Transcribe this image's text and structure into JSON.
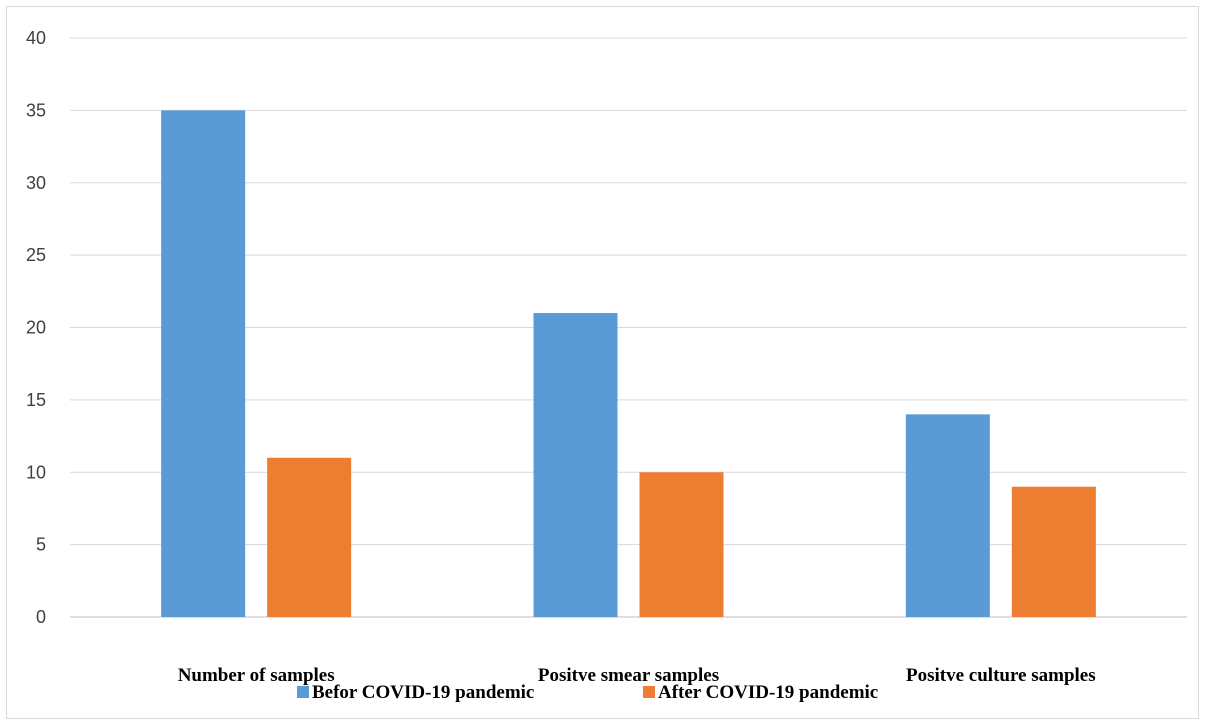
{
  "chart_data": {
    "type": "bar",
    "title": "",
    "xlabel": "",
    "ylabel": "",
    "ylim": [
      0,
      40
    ],
    "yticks": [
      0,
      5,
      10,
      15,
      20,
      25,
      30,
      35,
      40
    ],
    "grid": true,
    "legend_position": "bottom",
    "categories": [
      "Number of samples",
      "Positve smear samples",
      "Positve culture samples"
    ],
    "series": [
      {
        "name": "Befor COVID-19 pandemic",
        "values": [
          35,
          21,
          14
        ],
        "color": "#5b9bd5"
      },
      {
        "name": "After COVID-19 pandemic",
        "values": [
          11,
          10,
          9
        ],
        "color": "#ed7d31"
      }
    ]
  }
}
